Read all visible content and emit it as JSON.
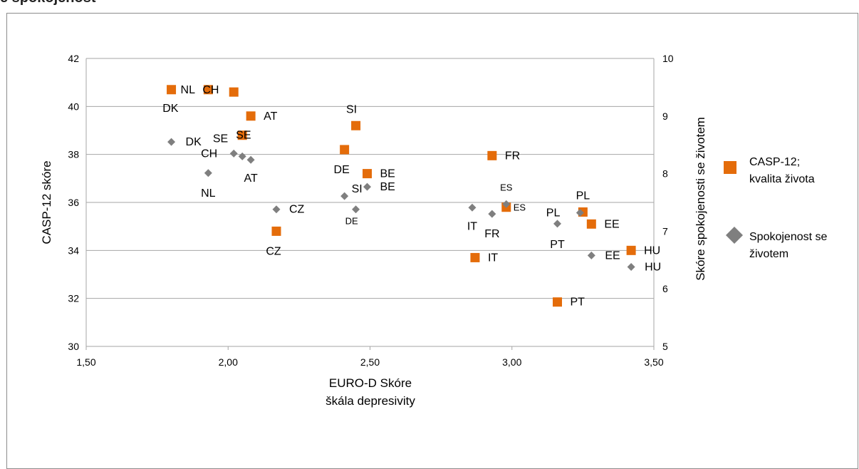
{
  "header": {
    "title": "e spokojenost"
  },
  "chart_data": {
    "type": "scatter",
    "title": "",
    "xlabel_lines": [
      "EURO-D Skóre",
      "škála depresivity"
    ],
    "ylabel": "CASP-12 skóre",
    "y2label": "Skóre spokojenosti se životem",
    "xlim": [
      1.5,
      3.5
    ],
    "ylim": [
      30,
      42
    ],
    "y2lim": [
      5,
      10
    ],
    "xticks": [
      "1,50",
      "2,00",
      "2,50",
      "3,00",
      "3,50"
    ],
    "yticks": [
      "30",
      "32",
      "34",
      "36",
      "38",
      "40",
      "42"
    ],
    "y2ticks": [
      "5",
      "6",
      "7",
      "8",
      "9",
      "10"
    ],
    "grid": "horizontal",
    "legend_position": "right",
    "series": [
      {
        "name_lines": [
          "CASP-12;",
          "kvalita života"
        ],
        "axis": "left",
        "color": "#e46c0a",
        "marker": "square",
        "points": [
          {
            "label": "NL",
            "x": 1.8,
            "y": 40.7
          },
          {
            "label": "CH",
            "x": 1.93,
            "y": 40.7
          },
          {
            "label": "DK",
            "x": 2.02,
            "y": 40.6
          },
          {
            "label": "AT",
            "x": 2.08,
            "y": 39.6
          },
          {
            "label": "SE",
            "x": 2.05,
            "y": 38.8
          },
          {
            "label": "SI",
            "x": 2.45,
            "y": 39.2
          },
          {
            "label": "DE",
            "x": 2.41,
            "y": 38.2
          },
          {
            "label": "BE",
            "x": 2.49,
            "y": 37.2
          },
          {
            "label": "FR",
            "x": 2.93,
            "y": 37.95
          },
          {
            "label": "CZ",
            "x": 2.17,
            "y": 34.8
          },
          {
            "label": "ES",
            "x": 2.98,
            "y": 35.8
          },
          {
            "label": "IT",
            "x": 2.87,
            "y": 33.7
          },
          {
            "label": "PL",
            "x": 3.25,
            "y": 35.6
          },
          {
            "label": "EE",
            "x": 3.28,
            "y": 35.1
          },
          {
            "label": "HU",
            "x": 3.42,
            "y": 34.0
          },
          {
            "label": "PT",
            "x": 3.16,
            "y": 31.85
          }
        ]
      },
      {
        "name_lines": [
          "Spokojenost se",
          "životem"
        ],
        "axis": "right",
        "color": "#7f7f7f",
        "marker": "diamond",
        "points": [
          {
            "label": "DK",
            "x": 1.8,
            "y": 8.55
          },
          {
            "label": "NL",
            "x": 1.93,
            "y": 8.01
          },
          {
            "label": "CH",
            "x": 2.02,
            "y": 8.35
          },
          {
            "label": "SE",
            "x": 2.05,
            "y": 8.3
          },
          {
            "label": "AT",
            "x": 2.08,
            "y": 8.24
          },
          {
            "label": "CZ",
            "x": 2.17,
            "y": 7.38
          },
          {
            "label": "SI",
            "x": 2.41,
            "y": 7.61
          },
          {
            "label": "DE",
            "x": 2.45,
            "y": 7.38
          },
          {
            "label": "BE",
            "x": 2.49,
            "y": 7.77
          },
          {
            "label": "IT",
            "x": 2.86,
            "y": 7.41
          },
          {
            "label": "FR",
            "x": 2.93,
            "y": 7.3
          },
          {
            "label": "ES",
            "x": 2.98,
            "y": 7.47
          },
          {
            "label": "PT",
            "x": 3.16,
            "y": 7.13
          },
          {
            "label": "PL",
            "x": 3.24,
            "y": 7.32
          },
          {
            "label": "EE",
            "x": 3.28,
            "y": 6.58
          },
          {
            "label": "HU",
            "x": 3.42,
            "y": 6.38
          }
        ]
      }
    ]
  }
}
